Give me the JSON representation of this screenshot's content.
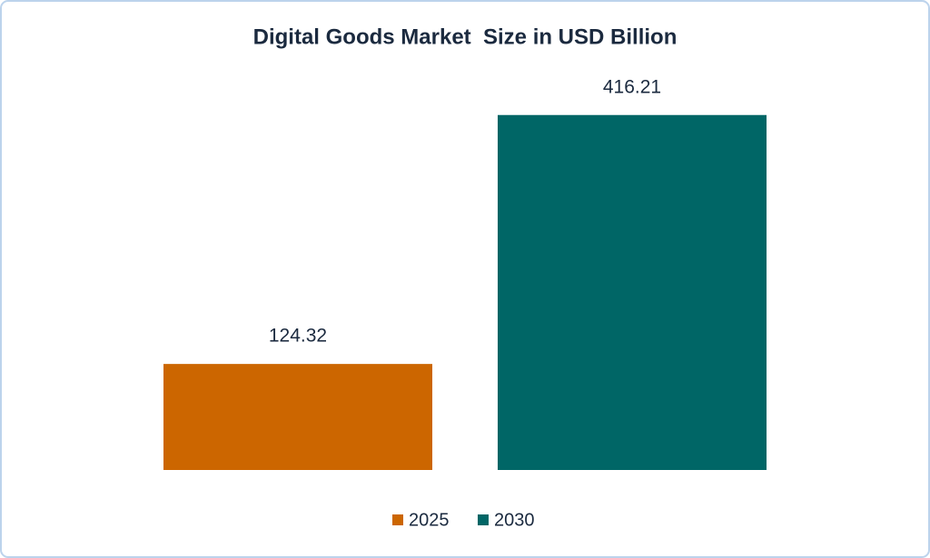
{
  "chart_data": {
    "type": "bar",
    "title": "Digital Goods Market  Size in USD Billion",
    "categories": [
      null
    ],
    "series": [
      {
        "name": "2025",
        "color": "#cc6600",
        "values": [
          124.32
        ]
      },
      {
        "name": "2030",
        "color": "#006666",
        "values": [
          416.21
        ]
      }
    ],
    "ylim": [
      0,
      450
    ],
    "grid": false,
    "legend": "bottom"
  }
}
